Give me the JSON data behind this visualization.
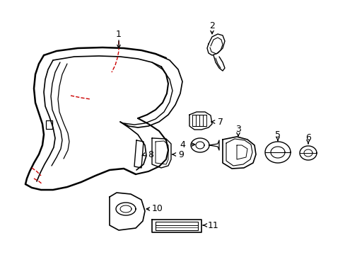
{
  "background_color": "#ffffff",
  "line_color": "#000000",
  "red_color": "#cc0000",
  "fig_width": 4.89,
  "fig_height": 3.6,
  "dpi": 100
}
